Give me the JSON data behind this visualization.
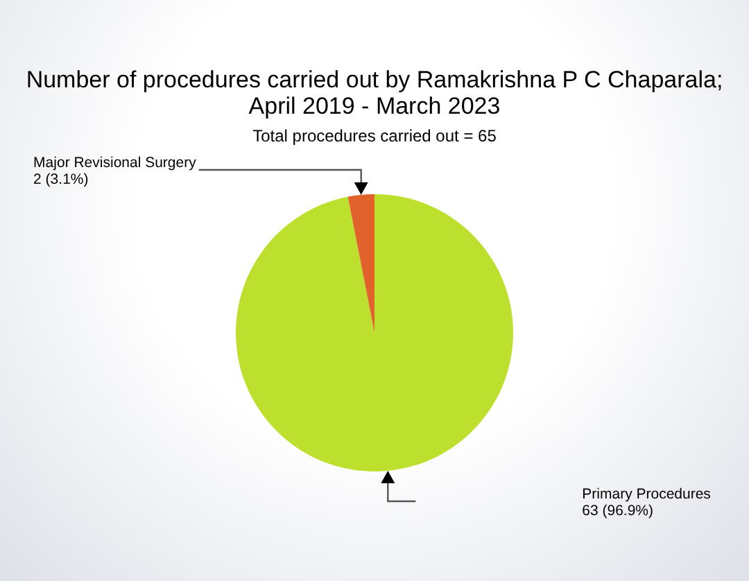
{
  "chart_data": {
    "type": "pie",
    "title": "Number of procedures carried out by Ramakrishna P C Chaparala;\nApril 2019 - March 2023",
    "subtitle": "Total procedures carried out = 65",
    "categories": [
      "Primary Procedures",
      "Major Revisional Surgery"
    ],
    "values": [
      63,
      2
    ],
    "colors": [
      "#bde02f",
      "#e2622b"
    ],
    "value_labels": [
      "63 (96.9%)",
      "2 (3.1%)"
    ],
    "legend": false
  }
}
